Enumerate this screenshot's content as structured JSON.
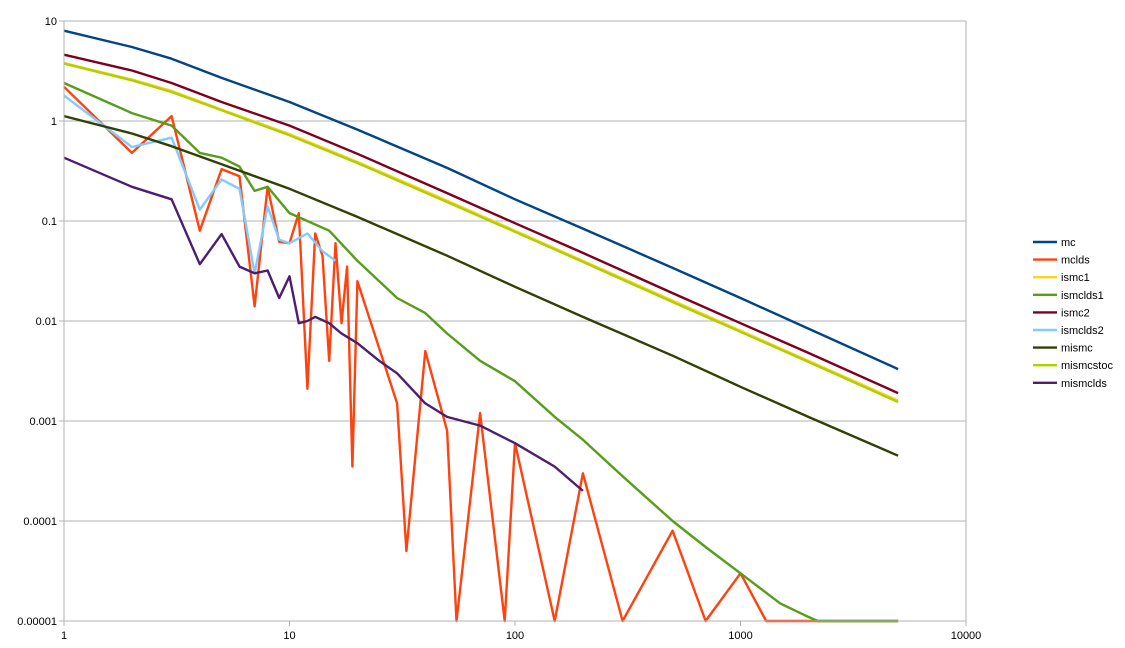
{
  "chart_data": {
    "type": "line",
    "x_scale": "log",
    "y_scale": "log",
    "xlim": [
      1,
      10000
    ],
    "ylim": [
      1e-05,
      10
    ],
    "x_ticks": [
      "1",
      "10",
      "100",
      "1000",
      "10000"
    ],
    "y_ticks": [
      "10",
      "1",
      "0.1",
      "0.01",
      "0.001",
      "0.0001",
      "0.00001"
    ],
    "grid": "horizontal",
    "legend_position": "right",
    "series": [
      {
        "name": "mc",
        "color": "#004586",
        "x": [
          1,
          2,
          3,
          5,
          10,
          20,
          50,
          100,
          200,
          500,
          1000,
          2000,
          5000
        ],
        "y": [
          8,
          5.5,
          4.2,
          2.7,
          1.55,
          0.82,
          0.34,
          0.165,
          0.084,
          0.034,
          0.017,
          0.0084,
          0.0033
        ]
      },
      {
        "name": "mclds",
        "color": "#ff420e",
        "x": [
          1,
          2,
          3,
          4,
          5,
          6,
          7,
          8,
          9,
          10,
          11,
          12,
          13,
          14,
          15,
          16,
          17,
          18,
          19,
          20,
          30,
          33,
          40,
          50,
          55,
          70,
          90,
          100,
          150,
          200,
          300,
          500,
          700,
          1000,
          1300,
          5000
        ],
        "y": [
          2.2,
          0.48,
          1.12,
          0.08,
          0.33,
          0.28,
          0.014,
          0.22,
          0.062,
          0.06,
          0.12,
          0.0021,
          0.075,
          0.045,
          0.004,
          0.06,
          0.0095,
          0.035,
          0.00035,
          0.025,
          0.0015,
          5e-05,
          0.005,
          0.0008,
          1e-05,
          0.0012,
          1e-05,
          0.0006,
          1e-05,
          0.0003,
          1e-05,
          8e-05,
          1e-05,
          3e-05,
          1e-05,
          1e-05
        ]
      },
      {
        "name": "ismc1",
        "color": "#ffd320",
        "x": [
          1,
          2,
          3,
          5,
          10,
          20,
          50,
          100,
          200,
          500,
          1000,
          2000,
          5000
        ],
        "y": [
          3.8,
          2.6,
          2.0,
          1.3,
          0.74,
          0.39,
          0.16,
          0.08,
          0.04,
          0.016,
          0.008,
          0.004,
          0.0016
        ]
      },
      {
        "name": "ismclds1",
        "color": "#579d1c",
        "x": [
          1,
          2,
          3,
          4,
          5,
          6,
          7,
          8,
          10,
          15,
          20,
          30,
          40,
          50,
          70,
          100,
          150,
          200,
          300,
          500,
          700,
          1000,
          1500,
          2000,
          2200,
          5000
        ],
        "y": [
          2.4,
          1.2,
          0.9,
          0.48,
          0.43,
          0.35,
          0.2,
          0.22,
          0.12,
          0.08,
          0.04,
          0.017,
          0.012,
          0.0075,
          0.004,
          0.0025,
          0.0011,
          0.00065,
          0.00028,
          0.0001,
          5.5e-05,
          3e-05,
          1.5e-05,
          1.1e-05,
          1e-05,
          1e-05
        ]
      },
      {
        "name": "ismc2",
        "color": "#7e0021",
        "x": [
          1,
          2,
          3,
          5,
          10,
          20,
          50,
          100,
          200,
          500,
          1000,
          2000,
          5000
        ],
        "y": [
          4.6,
          3.2,
          2.4,
          1.55,
          0.9,
          0.47,
          0.19,
          0.095,
          0.048,
          0.019,
          0.0095,
          0.0048,
          0.0019
        ]
      },
      {
        "name": "ismclds2",
        "color": "#83caff",
        "x": [
          1,
          2,
          3,
          4,
          5,
          6,
          7,
          8,
          9,
          10,
          12,
          14,
          16
        ],
        "y": [
          1.8,
          0.55,
          0.68,
          0.13,
          0.26,
          0.21,
          0.03,
          0.14,
          0.065,
          0.06,
          0.075,
          0.05,
          0.04
        ]
      },
      {
        "name": "mismc",
        "color": "#314004",
        "x": [
          1,
          2,
          3,
          5,
          10,
          20,
          50,
          100,
          200,
          500,
          1000,
          2000,
          5000
        ],
        "y": [
          1.12,
          0.75,
          0.56,
          0.37,
          0.21,
          0.11,
          0.045,
          0.022,
          0.011,
          0.0045,
          0.0022,
          0.0011,
          0.00045
        ]
      },
      {
        "name": "mismcstoc",
        "color": "#aecf00",
        "x": [
          1,
          2,
          3,
          5,
          10,
          20,
          50,
          100,
          200,
          500,
          1000,
          2000,
          5000
        ],
        "y": [
          3.75,
          2.55,
          1.95,
          1.28,
          0.72,
          0.38,
          0.155,
          0.078,
          0.039,
          0.0155,
          0.0078,
          0.0039,
          0.00155
        ]
      },
      {
        "name": "mismclds",
        "color": "#4b1f6f",
        "x": [
          1,
          2,
          3,
          4,
          5,
          6,
          7,
          8,
          9,
          10,
          11,
          12,
          13,
          15,
          17,
          20,
          25,
          30,
          40,
          50,
          70,
          100,
          150,
          200
        ],
        "y": [
          0.43,
          0.22,
          0.165,
          0.037,
          0.074,
          0.035,
          0.03,
          0.032,
          0.017,
          0.028,
          0.0095,
          0.01,
          0.011,
          0.0095,
          0.0075,
          0.006,
          0.004,
          0.003,
          0.0015,
          0.0011,
          0.0009,
          0.0006,
          0.00035,
          0.0002
        ]
      }
    ]
  }
}
